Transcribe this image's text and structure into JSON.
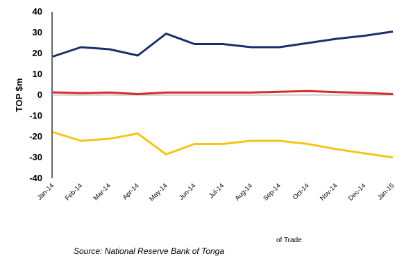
{
  "chart_data": {
    "type": "line",
    "ylabel": "TOP $m",
    "ylim": [
      -40,
      40
    ],
    "yticks": [
      40,
      30,
      20,
      10,
      0,
      -10,
      -20,
      -30,
      -40
    ],
    "categories": [
      "Jan-14",
      "Feb-14",
      "Mar-14",
      "Apr-14",
      "May-14",
      "Jun-14",
      "Jul-14",
      "Aug-14",
      "Sep-14",
      "Oct-14",
      "Nov-14",
      "Dec-14",
      "Jan-15"
    ],
    "series": [
      {
        "color": "#1a2e6b",
        "values": [
          18.5,
          23,
          22,
          19,
          29.5,
          24.5,
          24.5,
          23,
          23,
          25,
          27,
          28.5,
          30.5
        ]
      },
      {
        "color": "#d62c2c",
        "values": [
          1.3,
          0.9,
          1.2,
          0.5,
          1.2,
          1.2,
          1.2,
          1.2,
          1.6,
          1.9,
          1.4,
          1.0,
          0.5
        ]
      },
      {
        "color": "#f5c518",
        "values": [
          -17.8,
          -22,
          -21,
          -18.5,
          -28.5,
          -23.5,
          -23.5,
          -22,
          -22,
          -23.5,
          -26,
          -28,
          -30
        ]
      }
    ],
    "grid": false
  },
  "legend_fragment": "of Trade",
  "source": "Source: National Reserve Bank of Tonga"
}
